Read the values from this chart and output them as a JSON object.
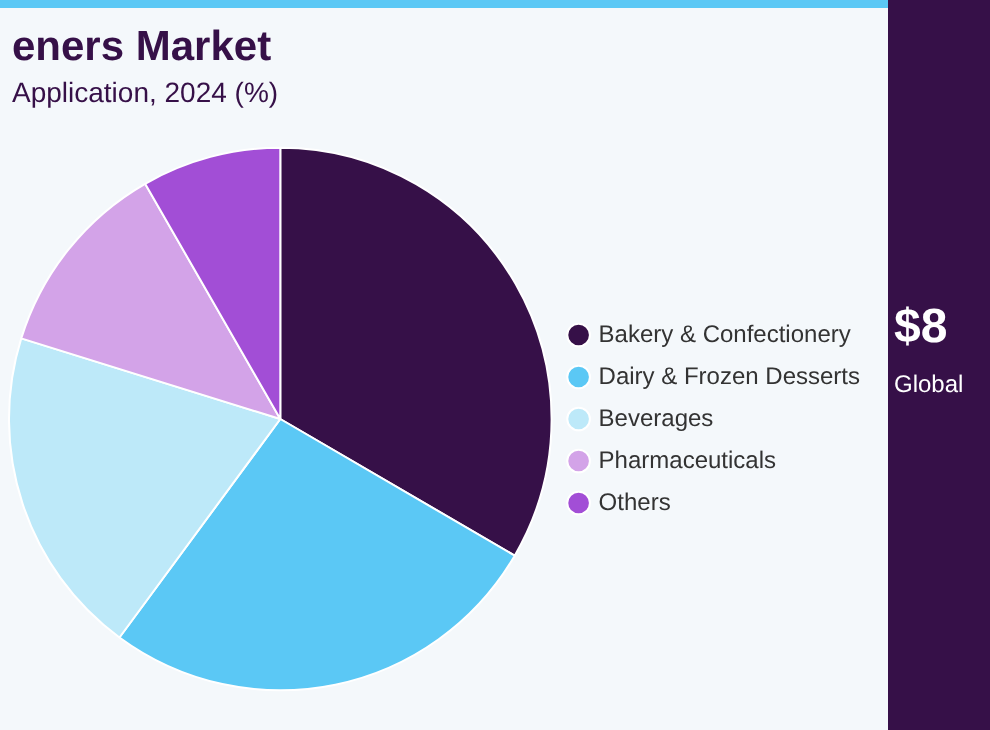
{
  "chart_data": {
    "type": "pie",
    "title": "eners Market",
    "subtitle": "Application, 2024 (%)",
    "categories": [
      "Bakery & Confectionery",
      "Dairy & Frozen Desserts",
      "Beverages",
      "Pharmaceuticals",
      "Others"
    ],
    "values": [
      33.4,
      26.7,
      19.7,
      11.9,
      8.3
    ],
    "colors": [
      "#361048",
      "#5bc8f5",
      "#bde9f9",
      "#d3a3e8",
      "#a24ed6"
    ],
    "legend": "right",
    "annotations": [
      "$8",
      "Global"
    ]
  }
}
